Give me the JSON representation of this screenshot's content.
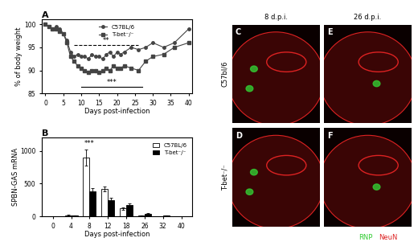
{
  "chart_data": [
    {
      "type": "line",
      "title": "A",
      "x_label": "Days post-infection",
      "y_label": "% of body weight",
      "x": [
        0,
        1,
        2,
        3,
        4,
        5,
        6,
        7,
        8,
        9,
        10,
        11,
        12,
        13,
        14,
        15,
        16,
        17,
        18,
        19,
        20,
        21,
        22,
        24,
        26,
        28,
        30,
        33,
        36,
        40
      ],
      "series": [
        {
          "name": "C57BL/6",
          "color": "#444444",
          "marker": "circle",
          "line_style": "solid",
          "values": [
            100,
            99.5,
            99,
            99.5,
            99,
            98,
            96.5,
            94,
            93,
            93.5,
            93,
            93,
            92.5,
            93.5,
            93,
            93,
            92.5,
            93.5,
            94,
            93,
            94,
            93.5,
            94,
            95,
            94.5,
            95,
            96,
            95,
            96,
            99
          ]
        },
        {
          "name": "T-bet⁻/⁻",
          "color": "#444444",
          "marker": "square",
          "line_style": "solid",
          "values": [
            100,
            99.5,
            99,
            99,
            98.5,
            98,
            96,
            93,
            92,
            91,
            90.5,
            90,
            89.5,
            90,
            90,
            89.5,
            90,
            90.5,
            90,
            91,
            90.5,
            90.5,
            91,
            90.5,
            90,
            92,
            93,
            93.5,
            95,
            96
          ]
        }
      ],
      "xlim": [
        -1,
        41
      ],
      "xticks": [
        0,
        5,
        10,
        15,
        20,
        25,
        30,
        35,
        40
      ],
      "ylim": [
        85,
        101
      ],
      "yticks": [
        85,
        90,
        95,
        100
      ],
      "legend": "upper center",
      "annotations": [
        {
          "text": "**",
          "x": [
            8,
            26
          ],
          "y": 95.5,
          "line_style": "dashed"
        },
        {
          "text": "***",
          "x": [
            10,
            27
          ],
          "y": 86.5,
          "line_style": "solid"
        }
      ]
    },
    {
      "type": "bar",
      "title": "B",
      "x_label": "Days post-infection",
      "y_label": "SPBN-GAS mRNA",
      "categories": [
        "0",
        "4",
        "8",
        "12",
        "18",
        "26",
        "32",
        "40"
      ],
      "series": [
        {
          "name": "C57BL/6",
          "color": "#ffffff",
          "values": [
            0,
            15,
            900,
            420,
            120,
            10,
            0,
            0
          ],
          "errors": [
            0,
            10,
            120,
            40,
            20,
            5,
            0,
            0
          ]
        },
        {
          "name": "T-bet⁻/⁻",
          "color": "#000000",
          "values": [
            0,
            10,
            380,
            250,
            180,
            40,
            10,
            0
          ],
          "errors": [
            0,
            5,
            50,
            30,
            25,
            15,
            5,
            0
          ]
        }
      ],
      "ylim": [
        0,
        1200
      ],
      "yticks": [
        0,
        500,
        1000
      ],
      "legend": "upper right",
      "annotations": [
        {
          "text": "***",
          "category": "8",
          "y": 1060
        }
      ]
    }
  ],
  "images": {
    "columns": [
      "8 d.p.i.",
      "26 d.p.i."
    ],
    "rows": [
      "C57bl/6",
      "T-bet⁻/⁻"
    ],
    "panels": [
      [
        "C",
        "E"
      ],
      [
        "D",
        "F"
      ]
    ],
    "stains": [
      {
        "name": "RNP",
        "color": "#33cc33"
      },
      {
        "name": "NeuN",
        "color": "#dd2222"
      }
    ]
  }
}
